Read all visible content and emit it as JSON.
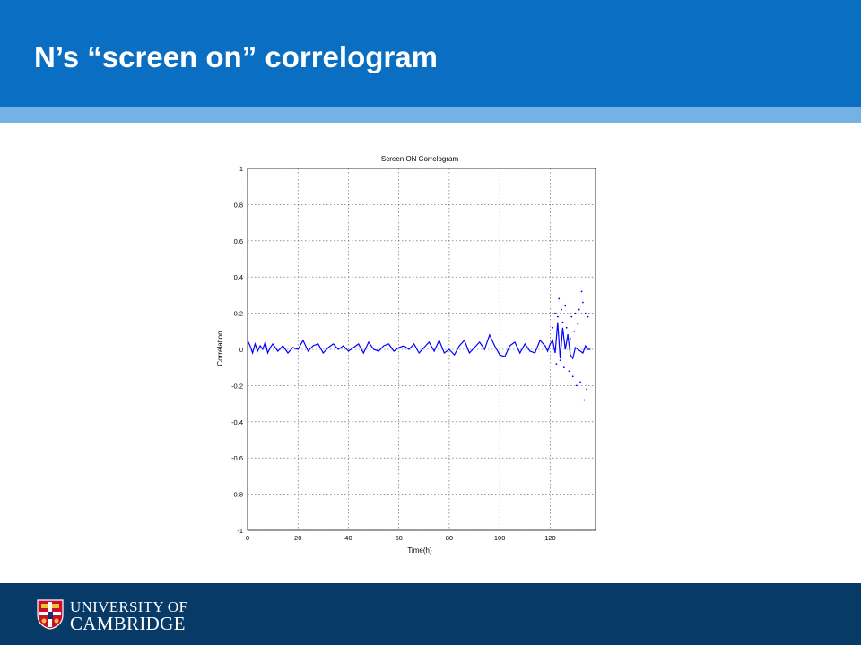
{
  "slide": {
    "title": "N’s “screen on” correlogram"
  },
  "footer": {
    "logo_line1": "UNIVERSITY OF",
    "logo_line2": "CAMBRIDGE"
  },
  "colors": {
    "header_blue": "#0a6fc2",
    "stripe_blue": "#74b2e6",
    "footer_navy": "#073a66",
    "series_blue": "#0000ff"
  },
  "chart_data": {
    "type": "line",
    "title": "Screen ON Correlogram",
    "xlabel": "Time(h)",
    "ylabel": "Correlation",
    "xlim": [
      0,
      138
    ],
    "ylim": [
      -1,
      1
    ],
    "grid": true,
    "x_ticks": [
      0,
      20,
      40,
      60,
      80,
      100,
      120
    ],
    "y_ticks": [
      1,
      0.8,
      0.6,
      0.4,
      0.2,
      0,
      -0.2,
      -0.4,
      -0.6,
      -0.8,
      -1
    ],
    "series": [
      {
        "color": "#0000ff",
        "x": [
          0,
          1,
          2,
          3,
          4,
          5,
          6,
          7,
          8,
          9,
          10,
          12,
          14,
          16,
          18,
          20,
          22,
          24,
          26,
          28,
          30,
          32,
          34,
          36,
          38,
          40,
          42,
          44,
          46,
          48,
          50,
          52,
          54,
          56,
          58,
          60,
          62,
          64,
          66,
          68,
          70,
          72,
          74,
          76,
          78,
          80,
          82,
          84,
          86,
          88,
          90,
          92,
          94,
          96,
          97,
          98,
          100,
          102,
          104,
          106,
          108,
          110,
          112,
          114,
          116,
          118,
          119,
          120,
          121,
          122,
          123,
          124,
          125,
          126,
          127,
          128,
          129,
          130,
          131,
          132,
          133,
          134,
          135,
          136
        ],
        "y": [
          0.05,
          0.02,
          -0.02,
          0.03,
          -0.01,
          0.02,
          0.0,
          0.04,
          -0.02,
          0.01,
          0.03,
          -0.01,
          0.02,
          -0.02,
          0.01,
          0.0,
          0.05,
          -0.01,
          0.02,
          0.03,
          -0.02,
          0.01,
          0.03,
          0.0,
          0.02,
          -0.01,
          0.01,
          0.03,
          -0.02,
          0.04,
          0.0,
          -0.01,
          0.02,
          0.03,
          -0.01,
          0.01,
          0.02,
          0.0,
          0.03,
          -0.02,
          0.01,
          0.04,
          -0.01,
          0.05,
          -0.02,
          0.0,
          -0.03,
          0.02,
          0.05,
          -0.02,
          0.01,
          0.04,
          0.0,
          0.08,
          0.05,
          0.02,
          -0.03,
          -0.04,
          0.02,
          0.04,
          -0.02,
          0.03,
          -0.01,
          -0.02,
          0.05,
          0.02,
          -0.01,
          0.03,
          0.05,
          -0.02,
          0.15,
          -0.05,
          0.12,
          0.0,
          0.08,
          -0.03,
          -0.05,
          0.01,
          0.0,
          -0.01,
          -0.02,
          0.02,
          0.0,
          0.0
        ]
      },
      {
        "color": "#0000ff",
        "marker": "dot",
        "x": [
          121,
          122,
          122.5,
          123,
          123.5,
          124,
          124.5,
          125,
          125.5,
          126,
          126.5,
          127,
          127.5,
          128,
          128.5,
          129,
          129.5,
          130,
          130.5,
          131,
          131.5,
          132,
          132.5,
          133,
          133.5,
          134,
          134.5,
          135
        ],
        "y": [
          0.12,
          0.2,
          -0.08,
          0.18,
          0.28,
          -0.06,
          0.22,
          0.15,
          -0.1,
          0.24,
          0.12,
          0.08,
          -0.12,
          0.06,
          0.18,
          -0.15,
          0.1,
          0.2,
          -0.2,
          0.14,
          0.22,
          -0.18,
          0.32,
          0.26,
          -0.28,
          0.2,
          -0.22,
          0.18
        ]
      }
    ]
  }
}
